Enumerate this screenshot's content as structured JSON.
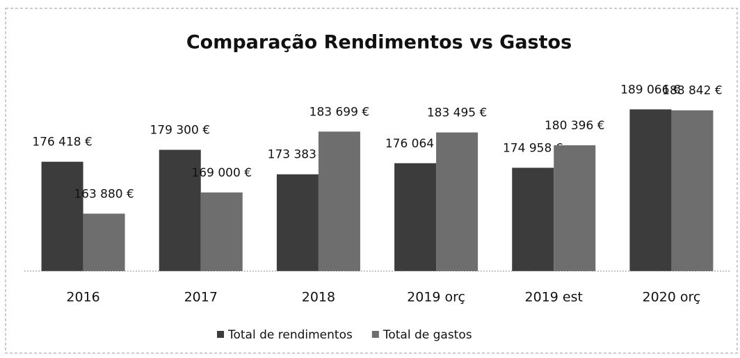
{
  "chart_data": {
    "type": "bar",
    "title": "Comparação Rendimentos vs Gastos",
    "categories": [
      "2016",
      "2017",
      "2018",
      "2019 orç",
      "2019 est",
      "2020 orç"
    ],
    "series": [
      {
        "name": "Total de rendimentos",
        "color": "#3c3c3c",
        "values": [
          176418,
          179300,
          173383,
          176064,
          174958,
          189066
        ],
        "value_labels": [
          "176 418 €",
          "179 300 €",
          "173 383 €",
          "176 064 €",
          "174 958 €",
          "189 066 €"
        ]
      },
      {
        "name": "Total de gastos",
        "color": "#6e6e6e",
        "values": [
          163880,
          169000,
          183699,
          183495,
          180396,
          188842
        ],
        "value_labels": [
          "163 880 €",
          "169 000 €",
          "183 699 €",
          "183 495 €",
          "180 396 €",
          "188 842 €"
        ]
      }
    ],
    "ylim": [
      150000,
      195000
    ],
    "legend": "bottom"
  }
}
